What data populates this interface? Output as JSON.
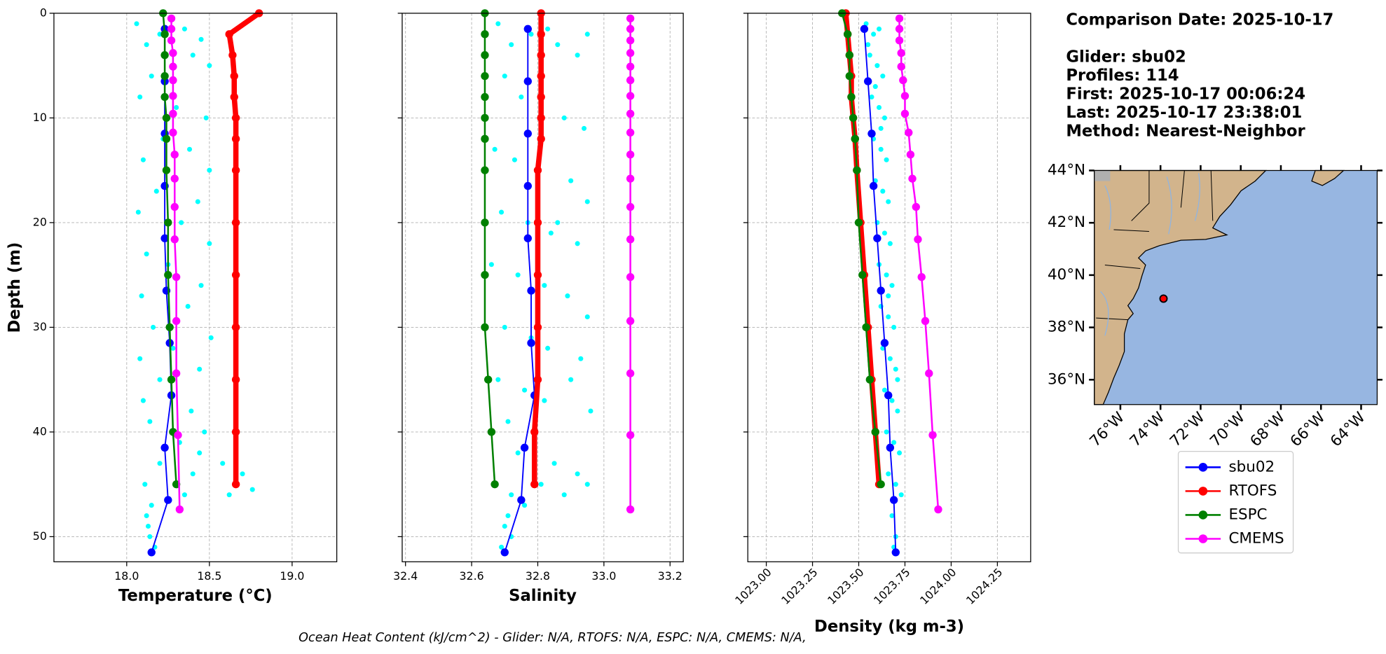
{
  "info": {
    "date": "Comparison Date: 2025-10-17",
    "glider": "Glider: sbu02",
    "profiles": "Profiles: 114",
    "first": "First: 2025-10-17 00:06:24",
    "last": "Last: 2025-10-17 23:38:01",
    "method": "Method: Nearest-Neighbor"
  },
  "footer": "Ocean Heat Content (kJ/cm^2) - Glider: N/A,  RTOFS: N/A,  ESPC: N/A,  CMEMS: N/A,",
  "legend": [
    {
      "name": "sbu02",
      "color": "#0000ff"
    },
    {
      "name": "RTOFS",
      "color": "#ff0000"
    },
    {
      "name": "ESPC",
      "color": "#008000"
    },
    {
      "name": "CMEMS",
      "color": "#ff00ff"
    }
  ],
  "chart_data": [
    {
      "type": "line",
      "xlabel": "Temperature (°C)",
      "ylabel": "Depth (m)",
      "grid": true,
      "xlim": [
        17.56,
        19.27
      ],
      "ylim": [
        52.4,
        0
      ],
      "xticks": [
        {
          "value": 18,
          "label": "18.0"
        },
        18.5,
        {
          "value": 19,
          "label": "19.0"
        }
      ],
      "yticks": [
        0,
        10,
        20,
        30,
        40,
        50
      ],
      "scatter": {
        "color": "#00ffff",
        "x": [
          18.06,
          18.12,
          18.2,
          18.35,
          18.45,
          18.5,
          18.4,
          18.15,
          18.08,
          18.3,
          18.48,
          18.22,
          18.38,
          18.1,
          18.5,
          18.18,
          18.43,
          18.07,
          18.33,
          18.5,
          18.12,
          18.25,
          18.45,
          18.09,
          18.37,
          18.16,
          18.51,
          18.28,
          18.08,
          18.44,
          18.2,
          18.1,
          18.39,
          18.14,
          18.47,
          18.32,
          18.44,
          18.58,
          18.7,
          18.76,
          18.62,
          18.4,
          18.2,
          18.11,
          18.15,
          18.12,
          18.13,
          18.14,
          18.17,
          18.35
        ],
        "y": [
          1,
          3,
          2,
          1.5,
          2.5,
          5,
          4,
          6,
          8,
          9,
          10,
          12,
          13,
          14,
          15,
          17,
          18,
          19,
          20,
          22,
          23,
          24,
          26,
          27,
          28,
          30,
          31,
          32,
          33,
          34,
          35,
          37,
          38,
          39,
          40,
          41,
          42,
          43,
          44,
          45.5,
          46,
          44,
          43,
          45,
          47,
          48,
          49,
          50,
          51,
          46
        ]
      },
      "series": [
        {
          "x": [
            18.23,
            18.23,
            18.23,
            18.23,
            18.23,
            18.24,
            18.26,
            18.27,
            18.23,
            18.25,
            18.15
          ],
          "y": [
            1.5,
            6.5,
            11.5,
            16.5,
            21.5,
            26.5,
            31.5,
            36.5,
            41.5,
            46.5,
            51.5
          ]
        },
        {
          "x": [
            18.8,
            18.62,
            18.64,
            18.65,
            18.65,
            18.66,
            18.66,
            18.66,
            18.66,
            18.66,
            18.66,
            18.66,
            18.66,
            18.66
          ],
          "y": [
            0,
            2,
            4,
            6,
            8,
            10,
            12,
            15,
            20,
            25,
            30,
            35,
            40,
            45
          ]
        },
        {
          "x": [
            18.22,
            18.23,
            18.23,
            18.23,
            18.23,
            18.24,
            18.24,
            18.24,
            18.25,
            18.25,
            18.26,
            18.27,
            18.28,
            18.3
          ],
          "y": [
            0,
            2,
            4,
            6,
            8,
            10,
            12,
            15,
            20,
            25,
            30,
            35,
            40,
            45
          ]
        },
        {
          "x": [
            18.27,
            18.27,
            18.27,
            18.28,
            18.28,
            18.28,
            18.28,
            18.28,
            18.28,
            18.29,
            18.29,
            18.29,
            18.29,
            18.3,
            18.3,
            18.3,
            18.31,
            18.32
          ],
          "y": [
            0.5,
            1.5,
            2.6,
            3.8,
            5.1,
            6.4,
            7.9,
            9.6,
            11.4,
            13.5,
            15.8,
            18.5,
            21.6,
            25.2,
            29.4,
            34.4,
            40.3,
            47.4
          ]
        }
      ]
    },
    {
      "type": "line",
      "xlabel": "Salinity",
      "grid": true,
      "xlim": [
        32.39,
        33.24
      ],
      "ylim": [
        52.4,
        0
      ],
      "xticks": [
        32.4,
        32.6,
        32.8,
        {
          "value": 33,
          "label": "33.0"
        },
        33.2
      ],
      "yticks": [
        0,
        10,
        20,
        30,
        40,
        50
      ],
      "scatter": {
        "color": "#00ffff",
        "x": [
          32.68,
          32.72,
          32.78,
          32.83,
          32.86,
          32.92,
          32.95,
          32.7,
          32.75,
          32.81,
          32.88,
          32.94,
          32.67,
          32.73,
          32.8,
          32.9,
          32.95,
          32.69,
          32.77,
          32.84,
          32.92,
          32.66,
          32.74,
          32.82,
          32.89,
          32.95,
          32.7,
          32.78,
          32.83,
          32.93,
          32.68,
          32.76,
          32.82,
          32.96,
          32.71,
          32.79,
          32.74,
          32.85,
          32.92,
          32.95,
          32.88,
          32.81,
          32.72,
          32.71,
          32.7,
          32.72,
          32.69,
          32.76,
          32.9,
          32.86
        ],
        "y": [
          1,
          3,
          2,
          1.5,
          3,
          4,
          2,
          6,
          8,
          9,
          10,
          11,
          13,
          14,
          15,
          16,
          18,
          19,
          20,
          21,
          22,
          24,
          25,
          26,
          27,
          29,
          30,
          31,
          32,
          33,
          35,
          36,
          37,
          38,
          39,
          40,
          42,
          43,
          44,
          45,
          46,
          45,
          46,
          48,
          49,
          50,
          51,
          47,
          35,
          20
        ]
      },
      "series": [
        {
          "x": [
            32.77,
            32.77,
            32.77,
            32.77,
            32.77,
            32.78,
            32.78,
            32.79,
            32.76,
            32.75,
            32.7
          ],
          "y": [
            1.5,
            6.5,
            11.5,
            16.5,
            21.5,
            26.5,
            31.5,
            36.5,
            41.5,
            46.5,
            51.5
          ]
        },
        {
          "x": [
            32.81,
            32.81,
            32.81,
            32.81,
            32.81,
            32.81,
            32.81,
            32.8,
            32.8,
            32.8,
            32.8,
            32.8,
            32.79,
            32.79
          ],
          "y": [
            0,
            2,
            4,
            6,
            8,
            10,
            12,
            15,
            20,
            25,
            30,
            35,
            40,
            45
          ]
        },
        {
          "x": [
            32.64,
            32.64,
            32.64,
            32.64,
            32.64,
            32.64,
            32.64,
            32.64,
            32.64,
            32.64,
            32.64,
            32.65,
            32.66,
            32.67
          ],
          "y": [
            0,
            2,
            4,
            6,
            8,
            10,
            12,
            15,
            20,
            25,
            30,
            35,
            40,
            45
          ]
        },
        {
          "x": [
            33.08,
            33.08,
            33.08,
            33.08,
            33.08,
            33.08,
            33.08,
            33.08,
            33.08,
            33.08,
            33.08,
            33.08,
            33.08,
            33.08,
            33.08,
            33.08,
            33.08,
            33.08
          ],
          "y": [
            0.5,
            1.5,
            2.6,
            3.8,
            5.1,
            6.4,
            7.9,
            9.6,
            11.4,
            13.5,
            15.8,
            18.5,
            21.6,
            25.2,
            29.4,
            34.4,
            40.3,
            47.4
          ]
        }
      ]
    },
    {
      "type": "line",
      "xlabel": "Density (kg m-3)",
      "grid": true,
      "xlim": [
        1022.9,
        1024.43
      ],
      "ylim": [
        52.4,
        0
      ],
      "xticks": [
        {
          "value": 1023,
          "label": "1023.00"
        },
        1023.25,
        {
          "value": 1023.5,
          "label": "1023.50"
        },
        1023.75,
        {
          "value": 1024,
          "label": "1024.00"
        },
        1024.25
      ],
      "yticks": [
        0,
        10,
        20,
        30,
        40,
        50
      ],
      "scatter": {
        "color": "#00ffff",
        "x": [
          1023.54,
          1023.58,
          1023.61,
          1023.56,
          1023.6,
          1023.63,
          1023.57,
          1023.61,
          1023.64,
          1023.58,
          1023.62,
          1023.65,
          1023.59,
          1023.63,
          1023.66,
          1023.6,
          1023.64,
          1023.67,
          1023.61,
          1023.65,
          1023.68,
          1023.62,
          1023.66,
          1023.69,
          1023.63,
          1023.67,
          1023.7,
          1023.64,
          1023.68,
          1023.71,
          1023.65,
          1023.69,
          1023.72,
          1023.66,
          1023.7,
          1023.73,
          1023.68,
          1023.7,
          1023.69,
          1023.55,
          1023.59,
          1023.62,
          1023.66,
          1023.71
        ],
        "y": [
          1,
          2,
          1.5,
          4,
          5,
          6,
          8,
          9,
          10,
          12,
          13,
          14,
          16,
          17,
          18,
          20,
          21,
          22,
          24,
          25,
          26,
          28,
          29,
          30,
          32,
          33,
          34,
          36,
          37,
          38,
          40,
          41,
          42,
          44,
          45,
          46,
          48,
          50,
          51,
          3,
          7,
          11,
          27,
          35
        ]
      },
      "series": [
        {
          "x": [
            1023.53,
            1023.55,
            1023.57,
            1023.58,
            1023.6,
            1023.62,
            1023.64,
            1023.66,
            1023.67,
            1023.69,
            1023.7
          ],
          "y": [
            1.5,
            6.5,
            11.5,
            16.5,
            21.5,
            26.5,
            31.5,
            36.5,
            41.5,
            46.5,
            51.5
          ]
        },
        {
          "x": [
            1023.43,
            1023.44,
            1023.45,
            1023.46,
            1023.46,
            1023.47,
            1023.48,
            1023.49,
            1023.51,
            1023.53,
            1023.55,
            1023.57,
            1023.59,
            1023.61
          ],
          "y": [
            0,
            2,
            4,
            6,
            8,
            10,
            12,
            15,
            20,
            25,
            30,
            35,
            40,
            45
          ]
        },
        {
          "x": [
            1023.41,
            1023.44,
            1023.45,
            1023.45,
            1023.46,
            1023.47,
            1023.48,
            1023.49,
            1023.5,
            1023.52,
            1023.54,
            1023.56,
            1023.59,
            1023.62
          ],
          "y": [
            0,
            2,
            4,
            6,
            8,
            10,
            12,
            15,
            20,
            25,
            30,
            35,
            40,
            45
          ]
        },
        {
          "x": [
            1023.72,
            1023.72,
            1023.72,
            1023.73,
            1023.73,
            1023.74,
            1023.75,
            1023.75,
            1023.77,
            1023.78,
            1023.79,
            1023.81,
            1023.82,
            1023.84,
            1023.86,
            1023.88,
            1023.9,
            1023.93
          ],
          "y": [
            0.5,
            1.5,
            2.6,
            3.8,
            5.1,
            6.4,
            7.9,
            9.6,
            11.4,
            13.5,
            15.8,
            18.5,
            21.6,
            25.2,
            29.4,
            34.4,
            40.3,
            47.4
          ]
        }
      ]
    },
    {
      "type": "map",
      "xlim": [
        -77.3,
        -63.2
      ],
      "ylim": [
        35.05,
        44
      ],
      "xticks": [
        {
          "value": -76,
          "label": "76°W"
        },
        {
          "value": -74,
          "label": "74°W"
        },
        {
          "value": -72,
          "label": "72°W"
        },
        {
          "value": -70,
          "label": "70°W"
        },
        {
          "value": -68,
          "label": "68°W"
        },
        {
          "value": -66,
          "label": "66°W"
        },
        {
          "value": -64,
          "label": "64°W"
        }
      ],
      "yticks": [
        {
          "value": 36,
          "label": "36°N"
        },
        {
          "value": 38,
          "label": "38°N"
        },
        {
          "value": 40,
          "label": "40°N"
        },
        {
          "value": 42,
          "label": "42°N"
        },
        {
          "value": 44,
          "label": "44°N"
        }
      ],
      "points": {
        "color": "#ff0000",
        "x": [
          -73.85
        ],
        "y": [
          39.1
        ]
      }
    }
  ]
}
